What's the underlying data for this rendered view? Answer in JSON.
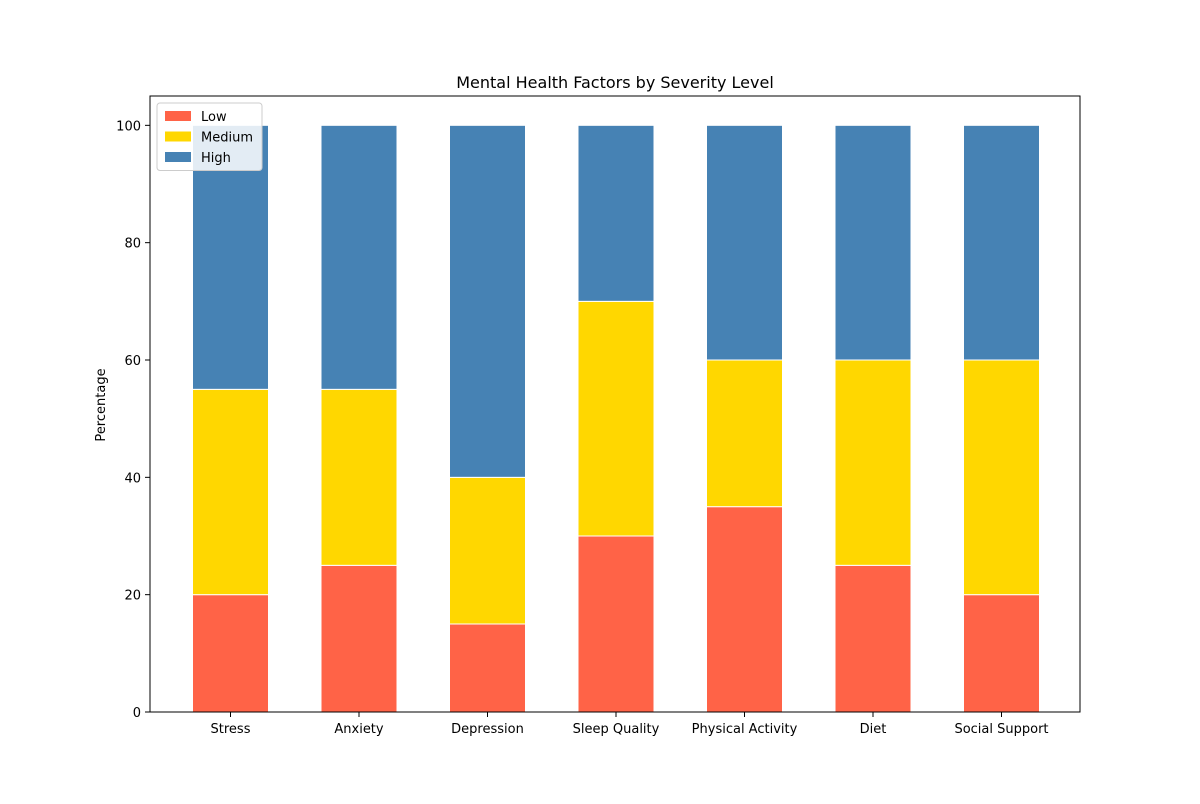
{
  "chart_data": {
    "type": "bar",
    "stacked": true,
    "title": "Mental Health Factors by Severity Level",
    "xlabel": "",
    "ylabel": "Percentage",
    "categories": [
      "Stress",
      "Anxiety",
      "Depression",
      "Sleep Quality",
      "Physical Activity",
      "Diet",
      "Social Support"
    ],
    "series": [
      {
        "name": "Low",
        "color": "#ff6347",
        "values": [
          20,
          25,
          15,
          30,
          35,
          25,
          20
        ]
      },
      {
        "name": "Medium",
        "color": "#ffd700",
        "values": [
          35,
          30,
          25,
          40,
          25,
          35,
          40
        ]
      },
      {
        "name": "High",
        "color": "#4682b4",
        "values": [
          45,
          45,
          60,
          30,
          40,
          40,
          40
        ]
      }
    ],
    "ylim": [
      0,
      105
    ],
    "yticks": [
      0,
      20,
      40,
      60,
      80,
      100
    ],
    "grid": false,
    "legend_position": "top-left"
  }
}
